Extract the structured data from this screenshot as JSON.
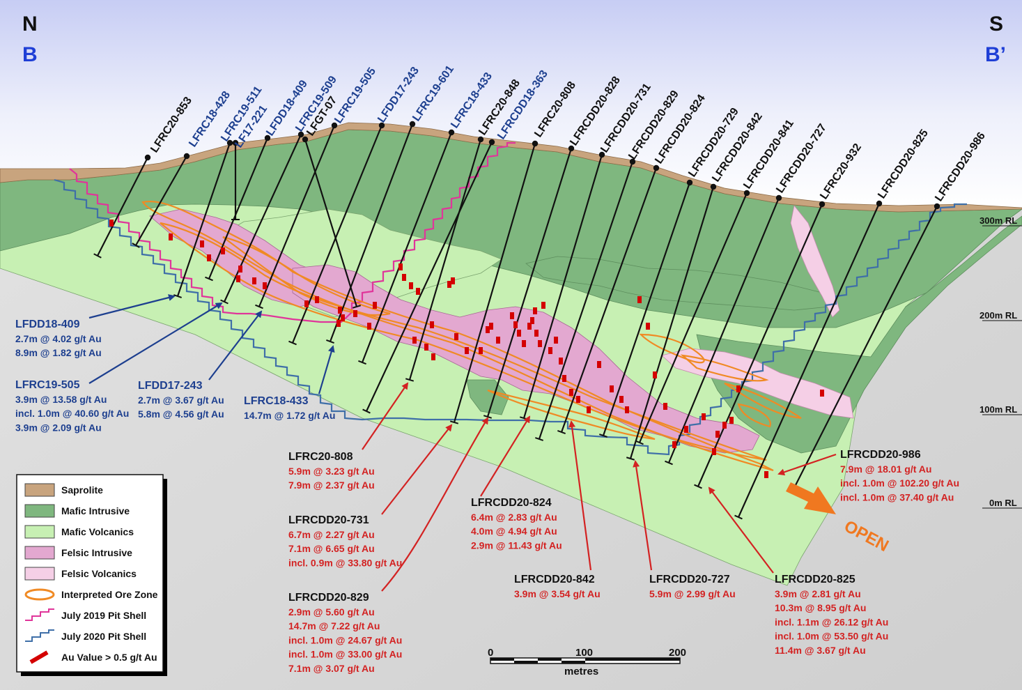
{
  "compass": {
    "north": "N",
    "south": "S",
    "section_start": "B",
    "section_end": "B’"
  },
  "rl_labels": [
    "300m RL",
    "200m RL",
    "100m RL",
    "0m RL"
  ],
  "drill_holes": [
    {
      "name": "LFRC20-853",
      "color": "#111111"
    },
    {
      "name": "LFRC18-428",
      "color": "#1d3f8f"
    },
    {
      "name": "LFRC19-511",
      "color": "#1d3f8f"
    },
    {
      "name": "LF17-221",
      "color": "#1d3f8f"
    },
    {
      "name": "LFDD18-409",
      "color": "#1d3f8f"
    },
    {
      "name": "LFRC19-509",
      "color": "#1d3f8f"
    },
    {
      "name": "LFGT-07",
      "color": "#111111"
    },
    {
      "name": "LFRC19-505",
      "color": "#1d3f8f"
    },
    {
      "name": "LFDD17-243",
      "color": "#1d3f8f"
    },
    {
      "name": "LFRC19-601",
      "color": "#1d3f8f"
    },
    {
      "name": "LFRC18-433",
      "color": "#1d3f8f"
    },
    {
      "name": "LFRC20-848",
      "color": "#111111"
    },
    {
      "name": "LFRCDD18-363",
      "color": "#1d3f8f"
    },
    {
      "name": "LFRC20-808",
      "color": "#111111"
    },
    {
      "name": "LFRCDD20-828",
      "color": "#111111"
    },
    {
      "name": "LFRCDD20-731",
      "color": "#111111"
    },
    {
      "name": "LFRCDD20-829",
      "color": "#111111"
    },
    {
      "name": "LFRCDD20-824",
      "color": "#111111"
    },
    {
      "name": "LFRCDD20-729",
      "color": "#111111"
    },
    {
      "name": "LFRCDD20-842",
      "color": "#111111"
    },
    {
      "name": "LFRCDD20-841",
      "color": "#111111"
    },
    {
      "name": "LFRCDD20-727",
      "color": "#111111"
    },
    {
      "name": "LFRC20-932",
      "color": "#111111"
    },
    {
      "name": "LFRCDD20-825",
      "color": "#111111"
    },
    {
      "name": "LFRCDD20-986",
      "color": "#111111"
    }
  ],
  "annotations": [
    {
      "title": "LFDD18-409",
      "color": "#1d3f8f",
      "lines": [
        "2.7m @ 4.02 g/t Au",
        "8.9m @ 1.82 g/t Au"
      ]
    },
    {
      "title": "LFRC19-505",
      "color": "#1d3f8f",
      "lines": [
        "3.9m @ 13.58 g/t Au",
        "incl. 1.0m @ 40.60 g/t Au",
        "3.9m @ 2.09 g/t Au"
      ]
    },
    {
      "title": "LFDD17-243",
      "color": "#1d3f8f",
      "lines": [
        "2.7m @ 3.67 g/t Au",
        "5.8m @ 4.56 g/t Au"
      ]
    },
    {
      "title": "LFRC18-433",
      "color": "#1d3f8f",
      "lines": [
        "14.7m @ 1.72 g/t Au"
      ]
    },
    {
      "title": "LFRC20-808",
      "color": "#d32222",
      "lines": [
        "5.9m @ 3.23 g/t Au",
        "7.9m @ 2.37 g/t Au"
      ]
    },
    {
      "title": "LFRCDD20-731",
      "color": "#d32222",
      "lines": [
        "6.7m @ 2.27 g/t Au",
        "7.1m @ 6.65 g/t Au",
        "incl. 0.9m @ 33.80 g/t Au"
      ]
    },
    {
      "title": "LFRCDD20-829",
      "color": "#d32222",
      "lines": [
        "2.9m @ 5.60 g/t Au",
        "14.7m @ 7.22 g/t Au",
        "incl. 1.0m @ 24.67 g/t Au",
        "incl. 1.0m @ 33.00 g/t Au",
        "7.1m @ 3.07 g/t Au"
      ]
    },
    {
      "title": "LFRCDD20-824",
      "color": "#d32222",
      "lines": [
        "6.4m @ 2.83 g/t Au",
        "4.0m @ 4.94 g/t Au",
        "2.9m @ 11.43 g/t Au"
      ]
    },
    {
      "title": "LFRCDD20-842",
      "color": "#d32222",
      "lines": [
        "3.9m @ 3.54 g/t Au"
      ]
    },
    {
      "title": "LFRCDD20-727",
      "color": "#d32222",
      "lines": [
        "5.9m @ 2.99 g/t Au"
      ]
    },
    {
      "title": "LFRCDD20-825",
      "color": "#d32222",
      "lines": [
        "3.9m @ 2.81 g/t Au",
        "10.3m @ 8.95 g/t Au",
        "incl. 1.1m @ 26.12 g/t Au",
        "incl. 1.0m @ 53.50 g/t Au",
        "11.4m @ 3.67 g/t Au"
      ]
    },
    {
      "title": "LFRCDD20-986",
      "color": "#d32222",
      "lines": [
        "7.9m @ 18.01 g/t Au",
        "incl. 1.0m @ 102.20 g/t Au",
        "incl. 1.0m @ 37.40 g/t Au"
      ]
    }
  ],
  "open_label": "OPEN",
  "legend": [
    {
      "label": "Saprolite",
      "color": "#c8a47e"
    },
    {
      "label": "Mafic Intrusive",
      "color": "#7fb77f"
    },
    {
      "label": "Mafic Volcanics",
      "color": "#c7f0b3"
    },
    {
      "label": "Felsic Intrusive",
      "color": "#e3a8d0"
    },
    {
      "label": "Felsic Volcanics",
      "color": "#f5cfe6"
    },
    {
      "label": "Interpreted Ore Zone",
      "color": "#f08a24"
    },
    {
      "label": "July 2019 Pit Shell",
      "color": "#e0359a"
    },
    {
      "label": "July 2020 Pit Shell",
      "color": "#3f6fa8"
    },
    {
      "label": "Au Value > 0.5 g/t Au",
      "color": "#d40000"
    }
  ],
  "scale_bar": {
    "ticks": [
      "0",
      "100",
      "200"
    ],
    "unit": "metres"
  }
}
